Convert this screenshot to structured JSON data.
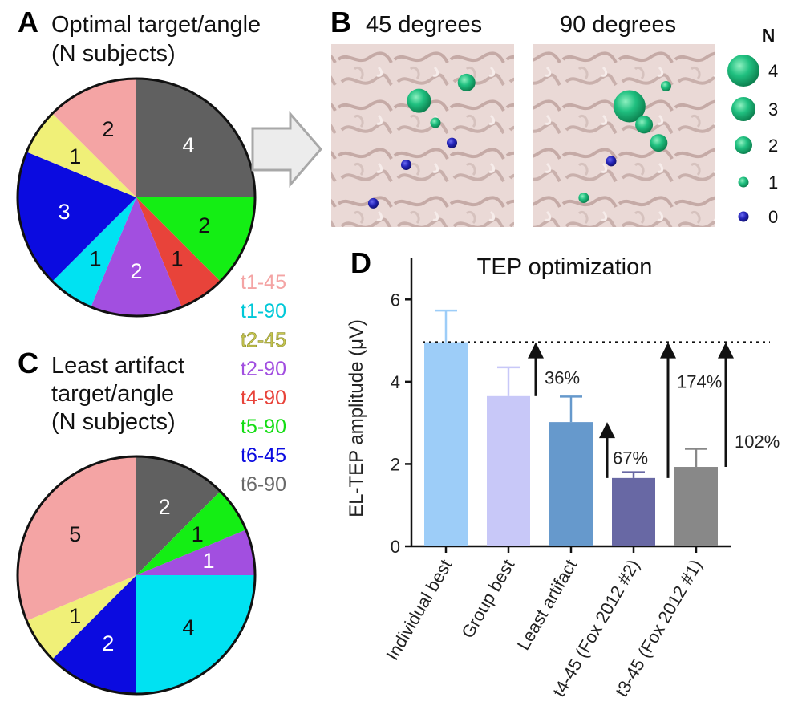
{
  "colors": {
    "t1-45": "#f4a4a4",
    "t1-90": "#00e2f2",
    "t2-45": "#f0f078",
    "t2-90": "#a24fe0",
    "t4-90": "#e8433a",
    "t5-90": "#14ee14",
    "t6-45": "#0b0be0",
    "t6-90": "#606060"
  },
  "legend_text_colors": {
    "t1-45": "#f4a4a4",
    "t1-90": "#00c8d8",
    "t2-45": "#c8c850",
    "t2-90": "#a24fe0",
    "t4-90": "#e8433a",
    "t5-90": "#14dd14",
    "t6-45": "#0b0be0",
    "t6-90": "#6a6a6a"
  },
  "panel_a": {
    "letter": "A",
    "title_line1": "Optimal target/angle",
    "title_line2": "(N subjects)"
  },
  "panel_b": {
    "letter": "B",
    "left_title": "45 degrees",
    "right_title": "90 degrees",
    "n_title": "N",
    "n_levels": [
      "4",
      "3",
      "2",
      "1",
      "0"
    ],
    "sphere_color": "#1fbf7a",
    "zero_color": "#2020b0",
    "left_spheres": [
      {
        "n": 3,
        "u": 0.48,
        "v": 0.31
      },
      {
        "n": 2,
        "u": 0.74,
        "v": 0.21
      },
      {
        "n": 1,
        "u": 0.57,
        "v": 0.43
      },
      {
        "n": 0,
        "u": 0.66,
        "v": 0.54
      },
      {
        "n": 0,
        "u": 0.41,
        "v": 0.66
      },
      {
        "n": 0,
        "u": 0.23,
        "v": 0.87
      }
    ],
    "right_spheres": [
      {
        "n": 4,
        "u": 0.53,
        "v": 0.34
      },
      {
        "n": 2,
        "u": 0.61,
        "v": 0.44
      },
      {
        "n": 2,
        "u": 0.69,
        "v": 0.54
      },
      {
        "n": 1,
        "u": 0.73,
        "v": 0.23
      },
      {
        "n": 0,
        "u": 0.43,
        "v": 0.64
      },
      {
        "n": 1,
        "u": 0.28,
        "v": 0.84
      }
    ]
  },
  "panel_c": {
    "letter": "C",
    "title_line1": "Least artifact",
    "title_line2": "target/angle",
    "title_line3": "(N subjects)"
  },
  "panel_d": {
    "letter": "D",
    "annotations": [
      "36%",
      "67%",
      "174%",
      "102%"
    ]
  },
  "chart_data": [
    {
      "type": "pie",
      "title": "Optimal target/angle (N subjects)",
      "categories": [
        "t6-90",
        "t5-90",
        "t4-90",
        "t2-90",
        "t1-90",
        "t6-45",
        "t2-45",
        "t1-45"
      ],
      "values": [
        4,
        2,
        1,
        2,
        1,
        3,
        1,
        2
      ]
    },
    {
      "type": "pie",
      "title": "Least artifact target/angle (N subjects)",
      "categories": [
        "t6-90",
        "t5-90",
        "t2-90",
        "t1-90",
        "t6-45",
        "t2-45",
        "t1-45"
      ],
      "values": [
        2,
        1,
        1,
        4,
        2,
        1,
        5
      ]
    },
    {
      "type": "bar",
      "title": "TEP optimization",
      "categories": [
        "Individual best",
        "Group best",
        "Least artifact",
        "t4-45 (Fox 2012 #2)",
        "t3-45 (Fox 2012 #1)"
      ],
      "values": [
        4.96,
        3.65,
        3.02,
        1.66,
        1.93
      ],
      "errors": [
        0.77,
        0.7,
        0.62,
        0.14,
        0.44
      ],
      "bar_colors": [
        "#9dcdf8",
        "#c8c8f8",
        "#6699cc",
        "#6868a4",
        "#888888"
      ],
      "reference_line": 4.96,
      "xlabel": "",
      "ylabel": "EL-TEP amplitude (μV)",
      "ylim": [
        0,
        7
      ],
      "yticks": [
        0,
        2,
        4,
        6
      ]
    }
  ]
}
